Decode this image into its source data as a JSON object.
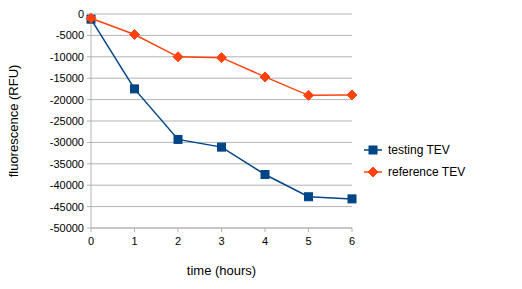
{
  "chart_data": {
    "type": "line",
    "x_label": "time (hours)",
    "y_label": "fluorescence (RFU)",
    "x": [
      0,
      1,
      2,
      3,
      4,
      5,
      6
    ],
    "xlim": [
      0,
      6
    ],
    "xticks": [
      0,
      1,
      2,
      3,
      4,
      5,
      6
    ],
    "ylim": [
      -50000,
      0
    ],
    "yticks": [
      -50000,
      -45000,
      -40000,
      -35000,
      -30000,
      -25000,
      -20000,
      -15000,
      -10000,
      -5000,
      0
    ],
    "grid": true,
    "legend": "right",
    "series": [
      {
        "name": "testing TEV",
        "color": "#004586",
        "marker": "square",
        "line_style": "solid",
        "values": [
          -1200,
          -17500,
          -29300,
          -31100,
          -37500,
          -42700,
          -43200
        ]
      },
      {
        "name": "reference TEV",
        "color": "#ff420e",
        "marker": "diamond",
        "line_style": "solid",
        "values": [
          -1000,
          -4800,
          -10000,
          -10200,
          -14700,
          -19000,
          -18900
        ]
      }
    ]
  }
}
